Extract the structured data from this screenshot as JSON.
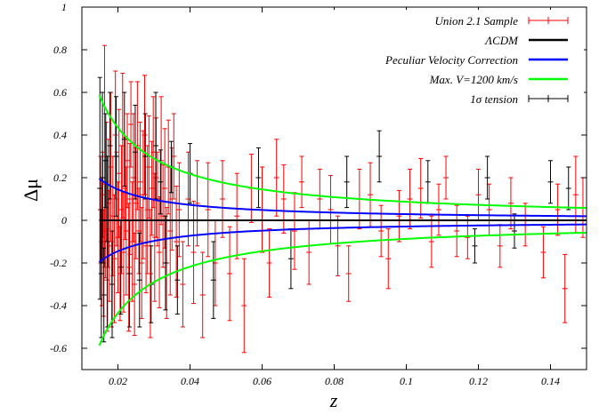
{
  "chart_data": {
    "type": "scatter",
    "title": "",
    "xlabel": "z",
    "ylabel": "Δμ",
    "xlim": [
      0.01,
      0.15
    ],
    "ylim": [
      -0.7,
      1.0
    ],
    "grid": false,
    "legend_position": "top-right",
    "x_ticks": [
      "0.02",
      "0.04",
      "0.06",
      "0.08",
      "0.1",
      "0.12",
      "0.14"
    ],
    "y_ticks": [
      "-0.6",
      "-0.4",
      "-0.2",
      "0",
      "0.2",
      "0.4",
      "0.6",
      "0.8",
      "1"
    ],
    "colors": {
      "union": "#ff0000",
      "lcdm": "#000000",
      "peculiar": "#0000ff",
      "maxv": "#00ff00",
      "tension": "#000000"
    },
    "series": [
      {
        "name": "Union 2.1 Sample",
        "kind": "errorbar",
        "points": [
          [
            0.0152,
            0.05,
            0.25
          ],
          [
            0.0155,
            -0.1,
            0.3
          ],
          [
            0.0158,
            0.12,
            0.2
          ],
          [
            0.016,
            -0.2,
            0.25
          ],
          [
            0.0163,
            0.3,
            0.52
          ],
          [
            0.0165,
            -0.05,
            0.22
          ],
          [
            0.0168,
            0.18,
            0.28
          ],
          [
            0.017,
            -0.28,
            0.24
          ],
          [
            0.0173,
            0.08,
            0.3
          ],
          [
            0.0176,
            -0.12,
            0.26
          ],
          [
            0.018,
            0.25,
            0.35
          ],
          [
            0.0183,
            -0.3,
            0.2
          ],
          [
            0.0186,
            0.02,
            0.28
          ],
          [
            0.019,
            -0.18,
            0.3
          ],
          [
            0.0193,
            0.4,
            0.3
          ],
          [
            0.0196,
            0.1,
            0.22
          ],
          [
            0.02,
            -0.08,
            0.26
          ],
          [
            0.0203,
            0.22,
            0.3
          ],
          [
            0.0206,
            -0.25,
            0.22
          ],
          [
            0.021,
            0.05,
            0.3
          ],
          [
            0.0213,
            0.35,
            0.34
          ],
          [
            0.0216,
            -0.15,
            0.28
          ],
          [
            0.022,
            0.15,
            0.24
          ],
          [
            0.0223,
            -0.05,
            0.3
          ],
          [
            0.0226,
            0.28,
            0.22
          ],
          [
            0.023,
            -0.22,
            0.3
          ],
          [
            0.0233,
            0.1,
            0.26
          ],
          [
            0.0236,
            0.45,
            0.2
          ],
          [
            0.024,
            -0.1,
            0.28
          ],
          [
            0.0243,
            0.2,
            0.3
          ],
          [
            0.0246,
            -0.3,
            0.24
          ],
          [
            0.025,
            0.08,
            0.26
          ],
          [
            0.0254,
            0.35,
            0.3
          ],
          [
            0.0258,
            -0.05,
            0.2
          ],
          [
            0.0262,
            0.18,
            0.28
          ],
          [
            0.0266,
            -0.2,
            0.26
          ],
          [
            0.027,
            0.12,
            0.3
          ],
          [
            0.0274,
            0.4,
            0.28
          ],
          [
            0.0278,
            -0.12,
            0.22
          ],
          [
            0.0282,
            0.05,
            0.3
          ],
          [
            0.0286,
            0.25,
            0.24
          ],
          [
            0.029,
            -0.25,
            0.3
          ],
          [
            0.0294,
            0.15,
            0.22
          ],
          [
            0.0298,
            0.32,
            0.26
          ],
          [
            0.0302,
            -0.08,
            0.3
          ],
          [
            0.0306,
            0.2,
            0.28
          ],
          [
            0.031,
            0.1,
            0.22
          ],
          [
            0.0315,
            -0.15,
            0.26
          ],
          [
            0.032,
            0.28,
            0.3
          ],
          [
            0.0325,
            0.02,
            0.24
          ],
          [
            0.033,
            0.15,
            0.28
          ],
          [
            0.0335,
            -0.2,
            0.26
          ],
          [
            0.034,
            0.25,
            0.22
          ],
          [
            0.0345,
            -0.05,
            0.3
          ],
          [
            0.035,
            0.1,
            0.24
          ],
          [
            0.0355,
            0.3,
            0.2
          ],
          [
            0.0362,
            -0.1,
            0.26
          ],
          [
            0.037,
            0.05,
            0.22
          ],
          [
            0.038,
            -0.3,
            0.2
          ],
          [
            0.0395,
            0.1,
            0.22
          ],
          [
            0.041,
            -0.15,
            0.24
          ],
          [
            0.042,
            0.08,
            0.2
          ],
          [
            0.0435,
            -0.35,
            0.2
          ],
          [
            0.045,
            0.05,
            0.22
          ],
          [
            0.047,
            -0.2,
            0.2
          ],
          [
            0.049,
            0.1,
            0.18
          ],
          [
            0.051,
            -0.25,
            0.22
          ],
          [
            0.053,
            0.02,
            0.2
          ],
          [
            0.055,
            -0.4,
            0.22
          ],
          [
            0.057,
            0.15,
            0.16
          ],
          [
            0.06,
            0.05,
            0.2
          ],
          [
            0.062,
            -0.2,
            0.16
          ],
          [
            0.064,
            0.2,
            0.18
          ],
          [
            0.066,
            0.1,
            0.16
          ],
          [
            0.069,
            -0.05,
            0.18
          ],
          [
            0.071,
            0.18,
            0.12
          ],
          [
            0.073,
            -0.15,
            0.15
          ],
          [
            0.076,
            0.1,
            0.14
          ],
          [
            0.079,
            0.05,
            0.16
          ],
          [
            0.081,
            -0.12,
            0.14
          ],
          [
            0.084,
            -0.25,
            0.13
          ],
          [
            0.087,
            0.1,
            0.14
          ],
          [
            0.09,
            0.12,
            0.15
          ],
          [
            0.093,
            -0.05,
            0.12
          ],
          [
            0.095,
            -0.18,
            0.14
          ],
          [
            0.098,
            0.02,
            0.12
          ],
          [
            0.101,
            0.1,
            0.14
          ],
          [
            0.104,
            0.15,
            0.14
          ],
          [
            0.107,
            -0.1,
            0.12
          ],
          [
            0.109,
            0.05,
            0.12
          ],
          [
            0.111,
            0.2,
            0.1
          ],
          [
            0.114,
            -0.05,
            0.12
          ],
          [
            0.117,
            -0.08,
            0.1
          ],
          [
            0.12,
            0.12,
            0.12
          ],
          [
            0.123,
            0.05,
            0.12
          ],
          [
            0.126,
            -0.12,
            0.1
          ],
          [
            0.129,
            0.08,
            0.12
          ],
          [
            0.133,
            -0.02,
            0.1
          ],
          [
            0.138,
            -0.15,
            0.12
          ],
          [
            0.142,
            0.05,
            0.12
          ],
          [
            0.144,
            -0.32,
            0.16
          ],
          [
            0.147,
            0.12,
            0.18
          ],
          [
            0.149,
            0.06,
            0.14
          ]
        ]
      },
      {
        "name": "ΛCDM",
        "kind": "line",
        "function": "zero"
      },
      {
        "name": "Peculiar Velocity Correction",
        "kind": "band",
        "v_kms": 400
      },
      {
        "name": "Max. V=1200 km/s",
        "kind": "band",
        "v_kms": 1200
      },
      {
        "name": "1σ tension",
        "kind": "errorbar",
        "points": [
          [
            0.015,
            0.15,
            0.52
          ],
          [
            0.0154,
            -0.25,
            0.3
          ],
          [
            0.0157,
            0.2,
            0.4
          ],
          [
            0.0161,
            -0.35,
            0.22
          ],
          [
            0.0166,
            0.28,
            0.22
          ],
          [
            0.0171,
            -0.1,
            0.4
          ],
          [
            0.0178,
            0.35,
            0.25
          ],
          [
            0.0184,
            -0.3,
            0.25
          ],
          [
            0.0195,
            0.3,
            0.28
          ],
          [
            0.0208,
            -0.22,
            0.22
          ],
          [
            0.0218,
            0.38,
            0.22
          ],
          [
            0.0232,
            -0.25,
            0.25
          ],
          [
            0.0248,
            0.32,
            0.22
          ],
          [
            0.026,
            -0.28,
            0.22
          ],
          [
            0.0276,
            0.3,
            0.2
          ],
          [
            0.0292,
            -0.3,
            0.18
          ],
          [
            0.0305,
            0.35,
            0.25
          ],
          [
            0.0318,
            0.18,
            0.15
          ],
          [
            0.0332,
            -0.2,
            0.22
          ],
          [
            0.0348,
            0.25,
            0.12
          ],
          [
            0.0365,
            -0.28,
            0.16
          ],
          [
            0.04,
            0.22,
            0.14
          ],
          [
            0.0465,
            -0.28,
            0.18
          ],
          [
            0.059,
            0.2,
            0.14
          ],
          [
            0.068,
            -0.18,
            0.14
          ],
          [
            0.0835,
            0.18,
            0.12
          ],
          [
            0.0925,
            0.3,
            0.12
          ],
          [
            0.106,
            0.18,
            0.1
          ],
          [
            0.119,
            -0.12,
            0.08
          ],
          [
            0.1225,
            0.2,
            0.1
          ],
          [
            0.13,
            -0.05,
            0.08
          ],
          [
            0.14,
            0.18,
            0.1
          ],
          [
            0.145,
            0.15,
            0.1
          ]
        ]
      }
    ]
  }
}
